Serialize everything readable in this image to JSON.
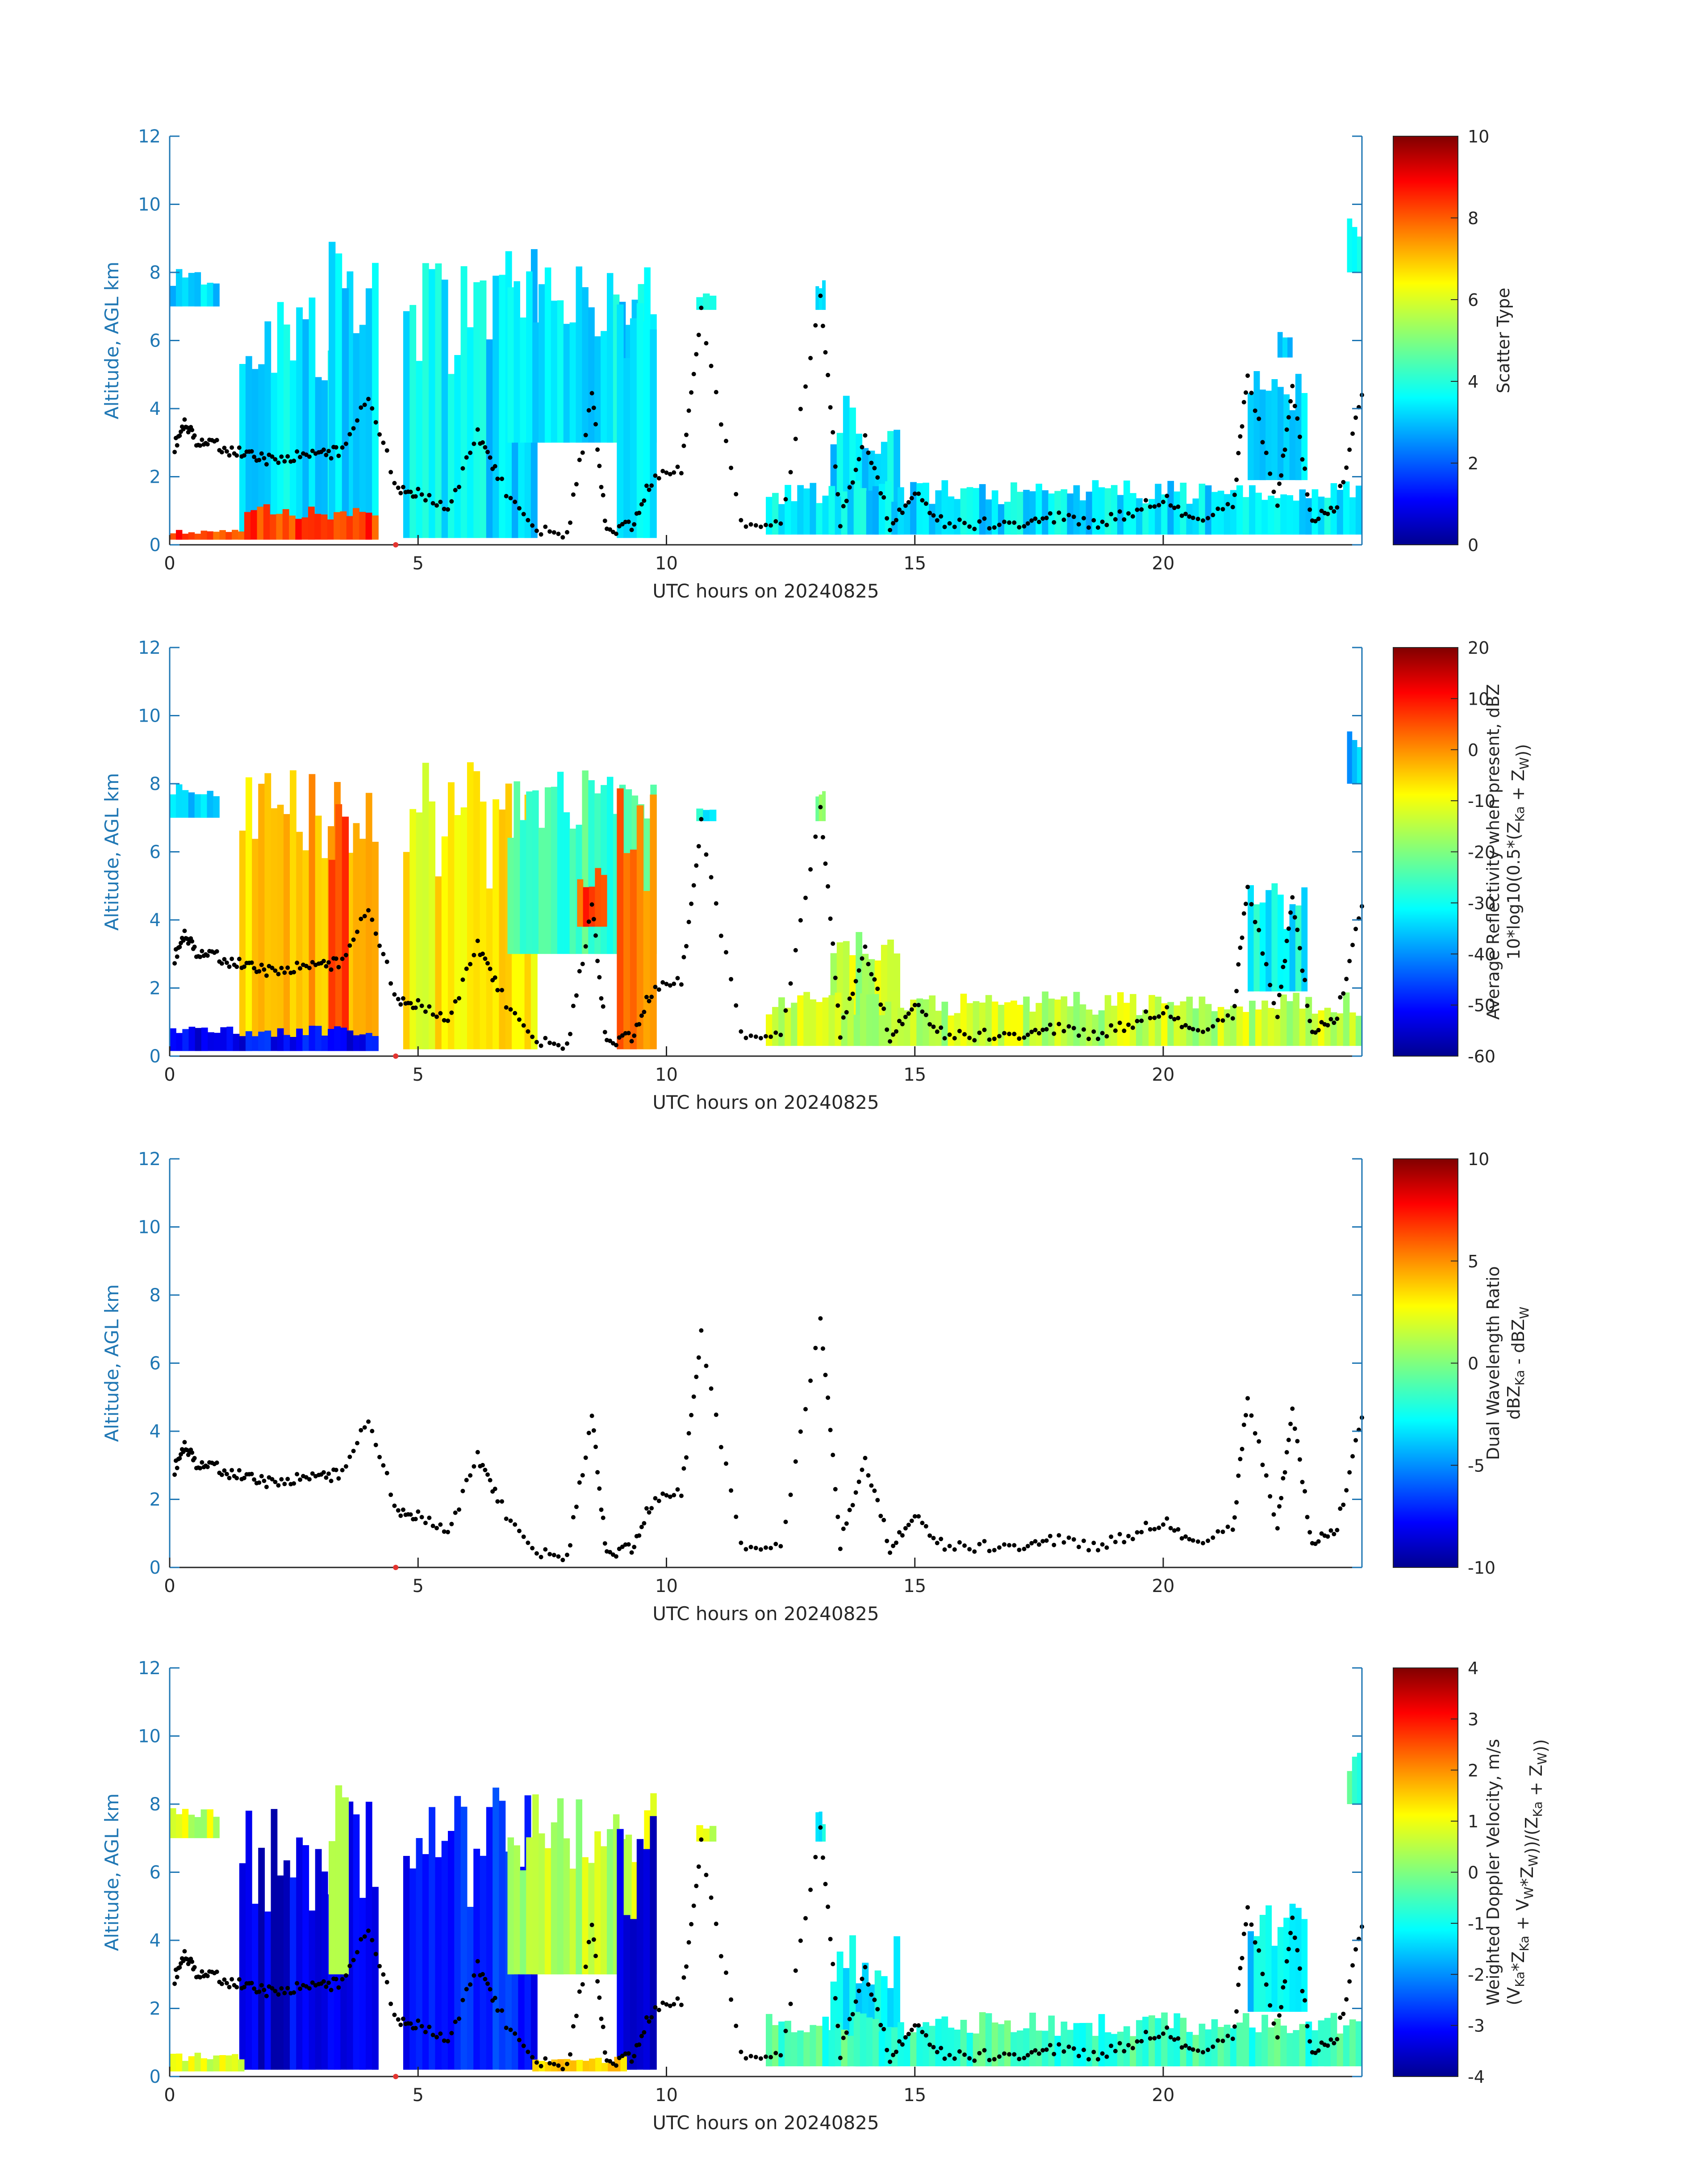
{
  "figure": {
    "title": ""
  },
  "chart_data": [
    {
      "type": "heatmap",
      "panel": "scatter-type",
      "title": "",
      "xlabel": "UTC hours on 20240825",
      "ylabel": "Altitude, AGL km",
      "xlim": [
        0,
        24
      ],
      "ylim": [
        0,
        12
      ],
      "xticks": [
        "0",
        "5",
        "10",
        "15",
        "20"
      ],
      "yticks": [
        "0",
        "2",
        "4",
        "6",
        "8",
        "10",
        "12"
      ],
      "colorbar": {
        "label_lines": [
          "Scatter Type"
        ],
        "min": 0,
        "max": 10,
        "ticks": [
          "0",
          "2",
          "4",
          "6",
          "8",
          "10"
        ],
        "colormap": "jet"
      },
      "grid": false,
      "dominant_values": {
        "cloud_scatter_type": 3.5,
        "near_surface_scatter_type": 8.2
      },
      "features": [
        {
          "x": [
            0.0,
            1.0
          ],
          "bottom": 7.0,
          "top": 8.1,
          "value": 3.5
        },
        {
          "x": [
            1.4,
            4.2
          ],
          "bottom": 0.2,
          "top": 8.5,
          "value": 3.5
        },
        {
          "x": [
            3.2,
            3.6
          ],
          "bottom": 0.3,
          "top": 9.0,
          "value": 3.5
        },
        {
          "x": [
            4.7,
            7.4
          ],
          "bottom": 0.2,
          "top": 8.7,
          "value": 3.5
        },
        {
          "x": [
            6.8,
            9.8
          ],
          "bottom": 3.0,
          "top": 8.4,
          "value": 3.5
        },
        {
          "x": [
            9.0,
            9.8
          ],
          "bottom": 0.2,
          "top": 7.9,
          "value": 3.5
        },
        {
          "x": [
            10.6,
            11.0
          ],
          "bottom": 6.9,
          "top": 7.4,
          "value": 3.5
        },
        {
          "x": [
            13.0,
            13.2
          ],
          "bottom": 6.9,
          "top": 7.8,
          "value": 3.5
        },
        {
          "x": [
            13.3,
            14.7
          ],
          "bottom": 0.3,
          "top": 4.4,
          "value": 3.5
        },
        {
          "x": [
            12.0,
            24.0
          ],
          "bottom": 0.3,
          "top": 1.9,
          "value": 3.5
        },
        {
          "x": [
            21.7,
            22.9
          ],
          "bottom": 1.9,
          "top": 5.2,
          "value": 3.5
        },
        {
          "x": [
            22.3,
            22.6
          ],
          "bottom": 5.5,
          "top": 6.4,
          "value": 3.5
        },
        {
          "x": [
            23.7,
            24.0
          ],
          "bottom": 8.0,
          "top": 9.6,
          "value": 3.5
        },
        {
          "x": [
            0.0,
            1.5
          ],
          "bottom": 0.15,
          "top": 0.45,
          "value": 8.2
        },
        {
          "x": [
            1.5,
            4.2
          ],
          "bottom": 0.15,
          "top": 1.2,
          "value": 8.2
        }
      ],
      "marker_points": [
        {
          "x": 0.1,
          "y": 2.9
        },
        {
          "x": 0.3,
          "y": 3.6
        },
        {
          "x": 0.5,
          "y": 3.1
        },
        {
          "x": 0.8,
          "y": 3.0
        },
        {
          "x": 1.2,
          "y": 2.8
        },
        {
          "x": 1.6,
          "y": 2.6
        },
        {
          "x": 2.0,
          "y": 2.5
        },
        {
          "x": 2.5,
          "y": 2.6
        },
        {
          "x": 3.0,
          "y": 2.7
        },
        {
          "x": 3.4,
          "y": 2.7
        },
        {
          "x": 4.0,
          "y": 4.3
        },
        {
          "x": 4.6,
          "y": 1.6
        },
        {
          "x": 5.0,
          "y": 1.5
        },
        {
          "x": 5.6,
          "y": 1.0
        },
        {
          "x": 6.2,
          "y": 3.3
        },
        {
          "x": 6.6,
          "y": 2.0
        },
        {
          "x": 7.3,
          "y": 0.4
        },
        {
          "x": 8.0,
          "y": 0.3
        },
        {
          "x": 8.5,
          "y": 4.4
        },
        {
          "x": 8.8,
          "y": 0.3
        },
        {
          "x": 9.3,
          "y": 0.6
        },
        {
          "x": 9.7,
          "y": 1.9
        },
        {
          "x": 10.3,
          "y": 2.2
        },
        {
          "x": 10.7,
          "y": 6.8
        },
        {
          "x": 11.5,
          "y": 0.6
        },
        {
          "x": 12.3,
          "y": 0.6
        },
        {
          "x": 13.1,
          "y": 7.3
        },
        {
          "x": 13.5,
          "y": 0.7
        },
        {
          "x": 14.0,
          "y": 3.2
        },
        {
          "x": 14.5,
          "y": 0.6
        },
        {
          "x": 15.0,
          "y": 1.5
        },
        {
          "x": 15.6,
          "y": 0.6
        },
        {
          "x": 16.4,
          "y": 0.6
        },
        {
          "x": 17.2,
          "y": 0.7
        },
        {
          "x": 17.8,
          "y": 0.8
        },
        {
          "x": 18.6,
          "y": 0.6
        },
        {
          "x": 19.3,
          "y": 0.9
        },
        {
          "x": 20.0,
          "y": 1.4
        },
        {
          "x": 20.6,
          "y": 0.8
        },
        {
          "x": 21.4,
          "y": 1.1
        },
        {
          "x": 21.7,
          "y": 5.0
        },
        {
          "x": 22.3,
          "y": 1.2
        },
        {
          "x": 22.6,
          "y": 4.6
        },
        {
          "x": 23.0,
          "y": 0.6
        },
        {
          "x": 23.5,
          "y": 1.2
        },
        {
          "x": 24.0,
          "y": 4.4
        }
      ]
    },
    {
      "type": "heatmap",
      "panel": "reflectivity",
      "title": "",
      "xlabel": "UTC hours on 20240825",
      "ylabel": "Altitude, AGL km",
      "xlim": [
        0,
        24
      ],
      "ylim": [
        0,
        12
      ],
      "xticks": [
        "0",
        "5",
        "10",
        "15",
        "20"
      ],
      "yticks": [
        "0",
        "2",
        "4",
        "6",
        "8",
        "10",
        "12"
      ],
      "colorbar": {
        "label_lines": [
          "Average Reflectivity when present, dBZ",
          "10*log10(0.5*(Z_Ka + Z_W))"
        ],
        "min": -60,
        "max": 20,
        "ticks": [
          "-60",
          "-50",
          "-40",
          "-30",
          "-20",
          "-10",
          "0",
          "10",
          "20"
        ],
        "colormap": "jet"
      },
      "grid": false,
      "features": [
        {
          "x": [
            0.0,
            1.0
          ],
          "bottom": 7.0,
          "top": 8.1,
          "value": -35
        },
        {
          "x": [
            1.4,
            4.2
          ],
          "bottom": 0.2,
          "top": 8.5,
          "value": -5
        },
        {
          "x": [
            3.2,
            3.6
          ],
          "bottom": 0.3,
          "top": 9.0,
          "value": 5
        },
        {
          "x": [
            4.7,
            7.4
          ],
          "bottom": 0.2,
          "top": 8.7,
          "value": -10
        },
        {
          "x": [
            6.8,
            9.8
          ],
          "bottom": 3.0,
          "top": 8.4,
          "value": -25
        },
        {
          "x": [
            8.2,
            8.8
          ],
          "bottom": 3.8,
          "top": 5.6,
          "value": 5
        },
        {
          "x": [
            9.0,
            9.8
          ],
          "bottom": 0.2,
          "top": 7.9,
          "value": 0
        },
        {
          "x": [
            10.6,
            11.0
          ],
          "bottom": 6.9,
          "top": 7.4,
          "value": -30
        },
        {
          "x": [
            13.0,
            13.2
          ],
          "bottom": 6.9,
          "top": 7.8,
          "value": -20
        },
        {
          "x": [
            13.3,
            14.7
          ],
          "bottom": 0.3,
          "top": 4.4,
          "value": -15
        },
        {
          "x": [
            12.0,
            24.0
          ],
          "bottom": 0.3,
          "top": 1.9,
          "value": -15
        },
        {
          "x": [
            21.7,
            22.9
          ],
          "bottom": 1.9,
          "top": 5.2,
          "value": -30
        },
        {
          "x": [
            23.7,
            24.0
          ],
          "bottom": 8.0,
          "top": 9.6,
          "value": -35
        },
        {
          "x": [
            0.0,
            4.2
          ],
          "bottom": 0.15,
          "top": 0.9,
          "value": -50
        }
      ]
    },
    {
      "type": "scatter",
      "panel": "dual-wavelength-ratio",
      "title": "",
      "xlabel": "UTC hours on 20240825",
      "ylabel": "Altitude, AGL km",
      "xlim": [
        0,
        24
      ],
      "ylim": [
        0,
        12
      ],
      "xticks": [
        "0",
        "5",
        "10",
        "15",
        "20"
      ],
      "yticks": [
        "0",
        "2",
        "4",
        "6",
        "8",
        "10",
        "12"
      ],
      "colorbar": {
        "label_lines": [
          "Dual Wavelength Ratio",
          "dBZ_Ka - dBZ_W"
        ],
        "min": -10,
        "max": 10,
        "ticks": [
          "-10",
          "-5",
          "0",
          "5",
          "10"
        ],
        "colormap": "jet"
      },
      "grid": false,
      "features": []
    },
    {
      "type": "heatmap",
      "panel": "doppler-velocity",
      "title": "",
      "xlabel": "UTC hours on 20240825",
      "ylabel": "Altitude, AGL km",
      "xlim": [
        0,
        24
      ],
      "ylim": [
        0,
        12
      ],
      "xticks": [
        "0",
        "5",
        "10",
        "15",
        "20"
      ],
      "yticks": [
        "0",
        "2",
        "4",
        "6",
        "8",
        "10",
        "12"
      ],
      "colorbar": {
        "label_lines": [
          "Weighted Doppler Velocity, m/s",
          "(V_Ka*Z_Ka + V_W*Z_W))/(Z_Ka + Z_W))"
        ],
        "min": -4,
        "max": 4,
        "ticks": [
          "-4",
          "-3",
          "-2",
          "-1",
          "0",
          "1",
          "2",
          "3",
          "4"
        ],
        "colormap": "jet"
      },
      "grid": false,
      "features": [
        {
          "x": [
            0.0,
            1.0
          ],
          "bottom": 7.0,
          "top": 8.1,
          "value": 0.6
        },
        {
          "x": [
            1.4,
            4.2
          ],
          "bottom": 0.2,
          "top": 8.5,
          "value": -3.2
        },
        {
          "x": [
            3.2,
            3.6
          ],
          "bottom": 3.0,
          "top": 9.0,
          "value": 0.0
        },
        {
          "x": [
            4.7,
            7.4
          ],
          "bottom": 0.2,
          "top": 8.7,
          "value": -2.8
        },
        {
          "x": [
            6.8,
            9.8
          ],
          "bottom": 3.0,
          "top": 8.4,
          "value": 0.5
        },
        {
          "x": [
            9.0,
            9.8
          ],
          "bottom": 0.2,
          "top": 7.9,
          "value": -3.2
        },
        {
          "x": [
            10.6,
            11.0
          ],
          "bottom": 6.9,
          "top": 7.4,
          "value": 0.5
        },
        {
          "x": [
            13.0,
            13.2
          ],
          "bottom": 6.9,
          "top": 7.8,
          "value": -1.0
        },
        {
          "x": [
            13.3,
            14.7
          ],
          "bottom": 0.3,
          "top": 4.4,
          "value": -1.2
        },
        {
          "x": [
            12.0,
            24.0
          ],
          "bottom": 0.3,
          "top": 1.9,
          "value": -0.5
        },
        {
          "x": [
            21.7,
            22.9
          ],
          "bottom": 1.9,
          "top": 5.2,
          "value": -1.2
        },
        {
          "x": [
            23.7,
            24.0
          ],
          "bottom": 8.0,
          "top": 9.6,
          "value": -0.6
        },
        {
          "x": [
            0.0,
            1.5
          ],
          "bottom": 0.15,
          "top": 0.7,
          "value": 0.6
        },
        {
          "x": [
            7.3,
            9.2
          ],
          "bottom": 0.15,
          "top": 0.6,
          "value": 1.5
        }
      ]
    }
  ],
  "colors": {
    "axis": "#1f77b4",
    "text": "#262626",
    "marker": "#000000",
    "panel_background": "#ffffff",
    "origin_marker": "#e3342f"
  }
}
